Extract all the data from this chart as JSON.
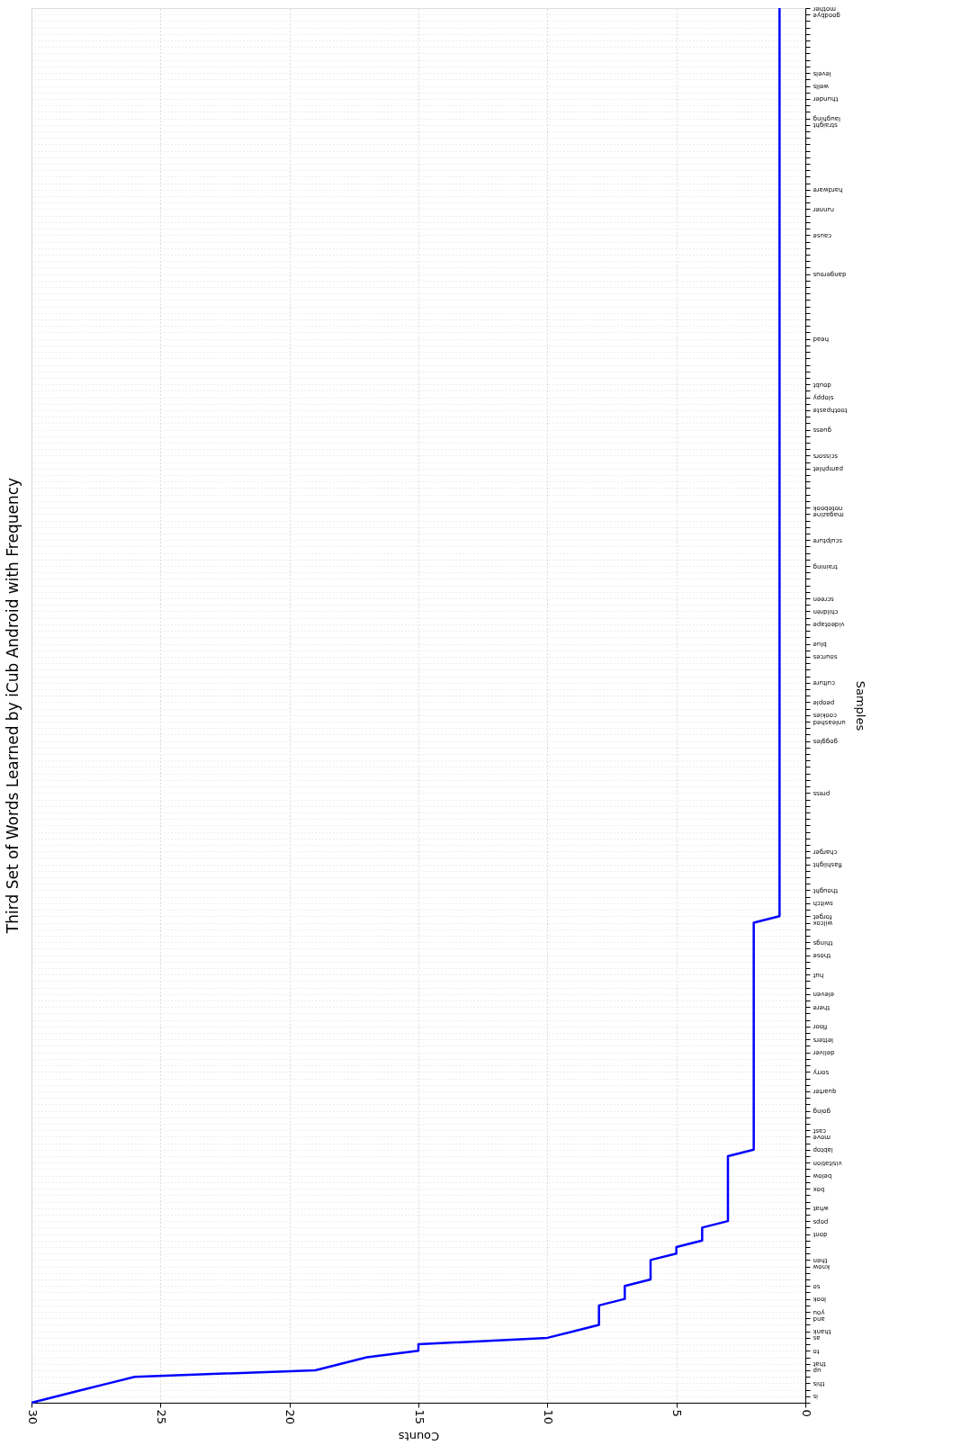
{
  "chart_data": {
    "type": "line",
    "title": "Third Set of Words Learned by iCub Android with Frequency",
    "xlabel": "Counts",
    "ylabel": "Samples",
    "orientation": "horizontal",
    "categories": [
      "mother",
      "goodbye",
      null,
      null,
      null,
      null,
      null,
      null,
      null,
      null,
      "levels",
      null,
      "wells",
      null,
      "thunder",
      null,
      null,
      "laughing",
      "straight",
      null,
      null,
      null,
      null,
      null,
      null,
      null,
      null,
      null,
      "hardware",
      null,
      null,
      "runner",
      null,
      null,
      null,
      "cause",
      null,
      null,
      null,
      null,
      null,
      "dangerous",
      null,
      null,
      null,
      null,
      null,
      null,
      null,
      null,
      null,
      "head",
      null,
      null,
      null,
      null,
      null,
      null,
      "doubt",
      null,
      "sloppy",
      null,
      "toothpaste",
      null,
      null,
      "guess",
      null,
      null,
      null,
      "scissors",
      null,
      "pamphlet",
      null,
      null,
      null,
      null,
      null,
      "notebook",
      "magazine",
      null,
      null,
      null,
      "sculpture",
      null,
      null,
      null,
      "training",
      null,
      null,
      null,
      null,
      "screen",
      null,
      "children",
      null,
      "videotape",
      null,
      null,
      "blue",
      null,
      "sources",
      null,
      null,
      null,
      "culture",
      null,
      null,
      "people",
      null,
      "cookies",
      "unleashed",
      null,
      null,
      "goggles",
      null,
      null,
      null,
      null,
      null,
      null,
      null,
      "press",
      null,
      null,
      null,
      null,
      null,
      null,
      null,
      null,
      "charger",
      null,
      "flashlight",
      null,
      null,
      null,
      "thought",
      null,
      "switch",
      null,
      "forget",
      "wilcox",
      null,
      null,
      "things",
      null,
      "those",
      null,
      null,
      "hut",
      null,
      null,
      "eleven",
      null,
      "there",
      null,
      null,
      "floor",
      null,
      "letters",
      null,
      "deliver",
      null,
      null,
      "sorry",
      null,
      null,
      "quarter",
      null,
      null,
      "going",
      null,
      null,
      "cast",
      "move",
      null,
      "labtop",
      null,
      "visitation",
      null,
      "below",
      null,
      "box",
      null,
      null,
      "what",
      null,
      "pops",
      null,
      "dont",
      null,
      null,
      null,
      "then",
      "know",
      null,
      null,
      "so",
      null,
      "look",
      null,
      "you",
      "and",
      null,
      "thank",
      "as",
      null,
      "to",
      null,
      "that",
      "up",
      null,
      "this",
      null,
      "is",
      null
    ],
    "values": [
      1,
      1,
      1,
      1,
      1,
      1,
      1,
      1,
      1,
      1,
      1,
      1,
      1,
      1,
      1,
      1,
      1,
      1,
      1,
      1,
      1,
      1,
      1,
      1,
      1,
      1,
      1,
      1,
      1,
      1,
      1,
      1,
      1,
      1,
      1,
      1,
      1,
      1,
      1,
      1,
      1,
      1,
      1,
      1,
      1,
      1,
      1,
      1,
      1,
      1,
      1,
      1,
      1,
      1,
      1,
      1,
      1,
      1,
      1,
      1,
      1,
      1,
      1,
      1,
      1,
      1,
      1,
      1,
      1,
      1,
      1,
      1,
      1,
      1,
      1,
      1,
      1,
      1,
      1,
      1,
      1,
      1,
      1,
      1,
      1,
      1,
      1,
      1,
      1,
      1,
      1,
      1,
      1,
      1,
      1,
      1,
      1,
      1,
      1,
      1,
      1,
      1,
      1,
      1,
      1,
      1,
      1,
      1,
      1,
      1,
      1,
      1,
      1,
      1,
      1,
      1,
      1,
      1,
      1,
      1,
      1,
      1,
      1,
      1,
      1,
      1,
      1,
      1,
      1,
      1,
      1,
      1,
      1,
      1,
      1,
      1,
      1,
      1,
      1,
      1,
      1,
      2,
      2,
      2,
      2,
      2,
      2,
      2,
      2,
      2,
      2,
      2,
      2,
      2,
      2,
      2,
      2,
      2,
      2,
      2,
      2,
      2,
      2,
      2,
      2,
      2,
      2,
      2,
      2,
      2,
      2,
      2,
      2,
      2,
      2,
      2,
      2,
      3,
      3,
      3,
      3,
      3,
      3,
      3,
      3,
      3,
      3,
      3,
      4,
      4,
      4,
      5,
      5,
      6,
      6,
      6,
      6,
      7,
      7,
      7,
      8,
      8,
      8,
      8,
      9,
      10,
      15,
      15,
      17,
      18,
      19,
      26,
      27,
      28,
      29,
      30
    ],
    "color": "#0000ff",
    "xlim": [
      30,
      0
    ],
    "xticks": [
      0,
      5,
      10,
      15,
      20,
      25,
      30
    ],
    "grid": true,
    "marker": "none",
    "line_style": "solid"
  }
}
